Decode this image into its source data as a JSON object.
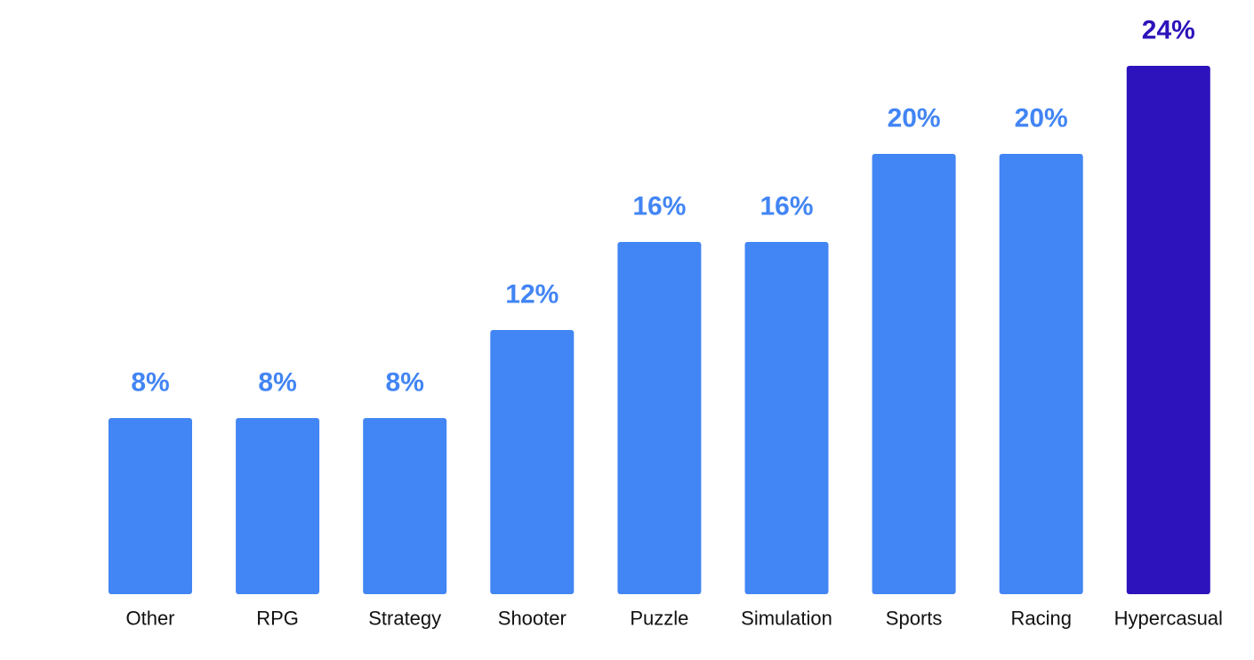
{
  "chart_data": {
    "type": "bar",
    "categories": [
      "Other",
      "RPG",
      "Strategy",
      "Shooter",
      "Puzzle",
      "Simulation",
      "Sports",
      "Racing",
      "Hypercasual"
    ],
    "values": [
      8,
      8,
      8,
      12,
      16,
      16,
      20,
      20,
      24
    ],
    "value_labels": [
      "8%",
      "8%",
      "8%",
      "12%",
      "16%",
      "16%",
      "20%",
      "20%",
      "24%"
    ],
    "highlighted_category": "Hypercasual",
    "title": "",
    "xlabel": "",
    "ylabel": "",
    "ylim": [
      0,
      24
    ],
    "grid": false,
    "legend": "none"
  },
  "colors": {
    "bar": "#4285F4",
    "highlight": "#2C13BB",
    "value_label": "#4285F4",
    "highlight_label": "#2C13BB",
    "category_label": "#111111"
  }
}
